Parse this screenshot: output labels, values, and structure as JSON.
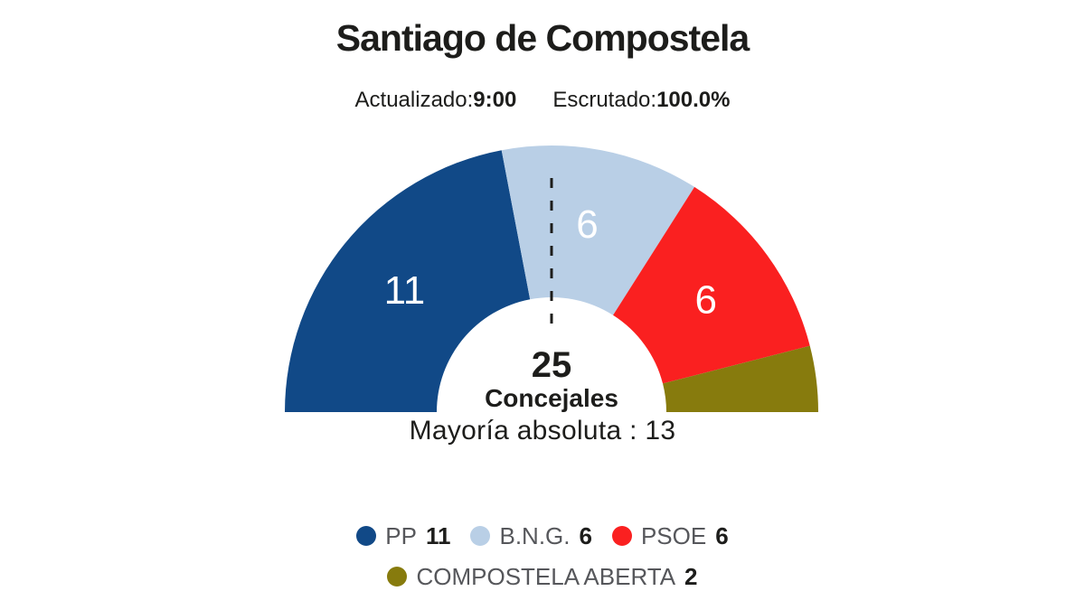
{
  "header": {
    "title": "Santiago de Compostela",
    "updated_label": "Actualizado:",
    "updated_value": "9:00",
    "scrutinized_label": "Escrutado:",
    "scrutinized_value": "100.0%"
  },
  "center": {
    "total_value": "25",
    "total_caption": "Concejales",
    "majority_text": "Mayoría absoluta : 13"
  },
  "chart_data": {
    "type": "pie",
    "variant": "semicircle-donut",
    "title": "Santiago de Compostela",
    "total_seats": 25,
    "majority_seats": 13,
    "majority_marker": "dashed-vertical-line",
    "legend_position": "bottom",
    "categories": [
      "PP",
      "B.N.G.",
      "PSOE",
      "COMPOSTELA ABERTA"
    ],
    "values": [
      11,
      6,
      6,
      2
    ],
    "series": [
      {
        "name": "PP",
        "seats": 11,
        "color": "#114987",
        "label": "11",
        "label_color": "#ffffff"
      },
      {
        "name": "B.N.G.",
        "seats": 6,
        "color": "#b9cfe6",
        "label": "6",
        "label_color": "#ffffff"
      },
      {
        "name": "PSOE",
        "seats": 6,
        "color": "#fa2020",
        "label": "6",
        "label_color": "#ffffff"
      },
      {
        "name": "COMPOSTELA ABERTA",
        "seats": 2,
        "color": "#877b0d",
        "label": "",
        "label_color": "#ffffff"
      }
    ]
  },
  "colors": {
    "background": "#ffffff",
    "text_primary": "#1d1d1b",
    "text_secondary": "#56575b",
    "majority_marker": "#1d1d1b"
  }
}
